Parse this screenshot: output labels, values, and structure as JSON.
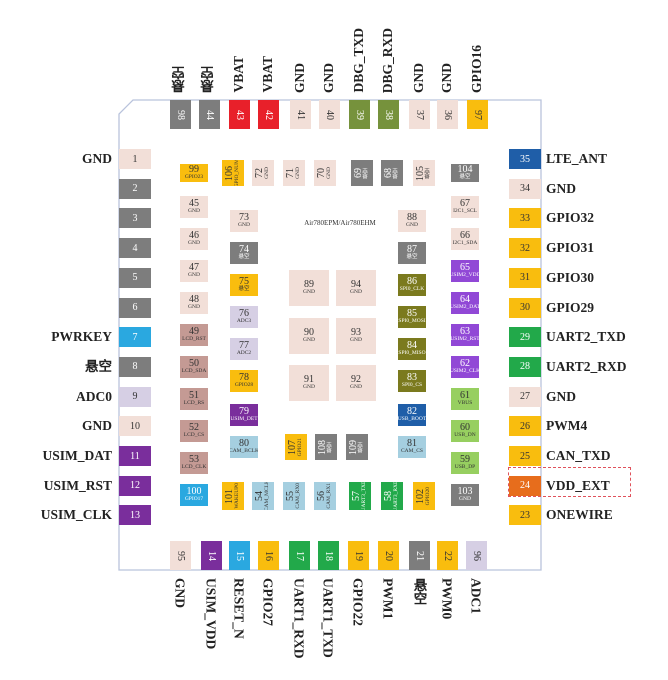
{
  "title": "Air780EPM/Air780EHM",
  "colors": {
    "gnd": "#f2dfd8",
    "gray": "#7d7d7d",
    "blue": "#2aa8e0",
    "lavender": "#d6cfe4",
    "purple": "#7a2e9c",
    "red": "#e8202a",
    "green": "#76923c",
    "yellow": "#f9bd0e",
    "bright_green": "#22a94a",
    "dark_blue": "#1f5ea8",
    "orange": "#e76d1c",
    "rose": "#c49a94",
    "light_blue": "#a5cfe0",
    "violet": "#9148d6",
    "olive": "#7b7a1e",
    "light_green": "#97cf60"
  },
  "pins": {
    "top": [
      {
        "num": "98",
        "label": "悬空",
        "color": "gray"
      },
      {
        "num": "44",
        "label": "悬空",
        "color": "gray"
      },
      {
        "num": "43",
        "label": "VBAT",
        "color": "red"
      },
      {
        "num": "42",
        "label": "VBAT",
        "color": "red"
      },
      {
        "num": "41",
        "label": "GND",
        "color": "gnd"
      },
      {
        "num": "40",
        "label": "GND",
        "color": "gnd"
      },
      {
        "num": "39",
        "label": "DBG_TXD",
        "color": "green"
      },
      {
        "num": "38",
        "label": "DBG_RXD",
        "color": "green"
      },
      {
        "num": "37",
        "label": "GND",
        "color": "gnd"
      },
      {
        "num": "36",
        "label": "GND",
        "color": "gnd"
      },
      {
        "num": "97",
        "label": "GPIO16",
        "color": "yellow"
      }
    ],
    "left": [
      {
        "num": "1",
        "label": "GND",
        "color": "gnd"
      },
      {
        "num": "2",
        "label": "",
        "color": "gray"
      },
      {
        "num": "3",
        "label": "",
        "color": "gray"
      },
      {
        "num": "4",
        "label": "",
        "color": "gray"
      },
      {
        "num": "5",
        "label": "",
        "color": "gray"
      },
      {
        "num": "6",
        "label": "",
        "color": "gray"
      },
      {
        "num": "7",
        "label": "PWRKEY",
        "color": "blue"
      },
      {
        "num": "8",
        "label": "悬空",
        "color": "gray"
      },
      {
        "num": "9",
        "label": "ADC0",
        "color": "lavender"
      },
      {
        "num": "10",
        "label": "GND",
        "color": "gnd"
      },
      {
        "num": "11",
        "label": "USIM_DAT",
        "color": "purple"
      },
      {
        "num": "12",
        "label": "USIM_RST",
        "color": "purple"
      },
      {
        "num": "13",
        "label": "USIM_CLK",
        "color": "purple"
      }
    ],
    "right": [
      {
        "num": "35",
        "label": "LTE_ANT",
        "color": "dark_blue"
      },
      {
        "num": "34",
        "label": "GND",
        "color": "gnd"
      },
      {
        "num": "33",
        "label": "GPIO32",
        "color": "yellow"
      },
      {
        "num": "32",
        "label": "GPIO31",
        "color": "yellow"
      },
      {
        "num": "31",
        "label": "GPIO30",
        "color": "yellow"
      },
      {
        "num": "30",
        "label": "GPIO29",
        "color": "yellow"
      },
      {
        "num": "29",
        "label": "UART2_TXD",
        "color": "bright_green"
      },
      {
        "num": "28",
        "label": "UART2_RXD",
        "color": "bright_green"
      },
      {
        "num": "27",
        "label": "GND",
        "color": "gnd"
      },
      {
        "num": "26",
        "label": "PWM4",
        "color": "yellow"
      },
      {
        "num": "25",
        "label": "CAN_TXD",
        "color": "yellow"
      },
      {
        "num": "24",
        "label": "VDD_EXT",
        "color": "orange"
      },
      {
        "num": "23",
        "label": "ONEWIRE",
        "color": "yellow"
      }
    ],
    "bottom": [
      {
        "num": "95",
        "label": "GND",
        "color": "gnd"
      },
      {
        "num": "14",
        "label": "USIM_VDD",
        "color": "purple"
      },
      {
        "num": "15",
        "label": "RESET_N",
        "color": "blue"
      },
      {
        "num": "16",
        "label": "GPIO27",
        "color": "yellow"
      },
      {
        "num": "17",
        "label": "UART1_RXD",
        "color": "bright_green"
      },
      {
        "num": "18",
        "label": "UART1_TXD",
        "color": "bright_green"
      },
      {
        "num": "19",
        "label": "GPIO22",
        "color": "yellow"
      },
      {
        "num": "20",
        "label": "PWM1",
        "color": "yellow"
      },
      {
        "num": "21",
        "label": "悬空",
        "color": "gray"
      },
      {
        "num": "22",
        "label": "PWM0",
        "color": "yellow"
      },
      {
        "num": "96",
        "label": "ADC1",
        "color": "lavender"
      }
    ]
  },
  "inner_pads": [
    {
      "num": "99",
      "sub": "GPIO23",
      "color": "yellow"
    },
    {
      "num": "106",
      "sub": "GPIO_NUM",
      "color": "yellow"
    },
    {
      "num": "72",
      "sub": "GND",
      "color": "gnd"
    },
    {
      "num": "71",
      "sub": "GND",
      "color": "gnd"
    },
    {
      "num": "70",
      "sub": "GND",
      "color": "gnd"
    },
    {
      "num": "69",
      "sub": "悬空",
      "color": "gray"
    },
    {
      "num": "68",
      "sub": "悬空",
      "color": "gray"
    },
    {
      "num": "105",
      "sub": "悬空",
      "color": "gnd"
    },
    {
      "num": "104",
      "sub": "悬空",
      "color": "gray"
    },
    {
      "num": "45",
      "sub": "GND",
      "color": "gnd"
    },
    {
      "num": "67",
      "sub": "I2C1_SCL",
      "color": "gnd"
    },
    {
      "num": "73",
      "sub": "GND",
      "color": "gnd"
    },
    {
      "num": "88",
      "sub": "GND",
      "color": "gnd"
    },
    {
      "num": "46",
      "sub": "GND",
      "color": "gnd"
    },
    {
      "num": "66",
      "sub": "I2C1_SDA",
      "color": "gnd"
    },
    {
      "num": "74",
      "sub": "悬空",
      "color": "gray"
    },
    {
      "num": "87",
      "sub": "悬空",
      "color": "gray"
    },
    {
      "num": "47",
      "sub": "GND",
      "color": "gnd"
    },
    {
      "num": "65",
      "sub": "USIM2_VDD",
      "color": "violet"
    },
    {
      "num": "89",
      "sub": "GND",
      "color": "gnd"
    },
    {
      "num": "94",
      "sub": "GND",
      "color": "gnd"
    },
    {
      "num": "75",
      "sub": "悬空",
      "color": "yellow"
    },
    {
      "num": "86",
      "sub": "SPI0_CLK",
      "color": "olive"
    },
    {
      "num": "48",
      "sub": "GND",
      "color": "gnd"
    },
    {
      "num": "64",
      "sub": "USIM2_DAT",
      "color": "violet"
    },
    {
      "num": "76",
      "sub": "ADC3",
      "color": "lavender"
    },
    {
      "num": "85",
      "sub": "SPI0_MOSI",
      "color": "olive"
    },
    {
      "num": "90",
      "sub": "GND",
      "color": "gnd"
    },
    {
      "num": "93",
      "sub": "GND",
      "color": "gnd"
    },
    {
      "num": "49",
      "sub": "LCD_RST",
      "color": "rose"
    },
    {
      "num": "63",
      "sub": "USIM2_RST",
      "color": "violet"
    },
    {
      "num": "77",
      "sub": "ADC2",
      "color": "lavender"
    },
    {
      "num": "84",
      "sub": "SPI0_MISO",
      "color": "olive"
    },
    {
      "num": "50",
      "sub": "LCD_SDA",
      "color": "rose"
    },
    {
      "num": "62",
      "sub": "USIM2_CLK",
      "color": "violet"
    },
    {
      "num": "91",
      "sub": "GND",
      "color": "gnd"
    },
    {
      "num": "92",
      "sub": "GND",
      "color": "gnd"
    },
    {
      "num": "78",
      "sub": "GPIO28",
      "color": "yellow"
    },
    {
      "num": "83",
      "sub": "SPI0_CS",
      "color": "olive"
    },
    {
      "num": "51",
      "sub": "LCD_RS",
      "color": "rose"
    },
    {
      "num": "61",
      "sub": "VBUS",
      "color": "light_green"
    },
    {
      "num": "79",
      "sub": "USIM_DET",
      "color": "purple"
    },
    {
      "num": "82",
      "sub": "USB_BOOT",
      "color": "dark_blue"
    },
    {
      "num": "52",
      "sub": "LCD_CS",
      "color": "rose"
    },
    {
      "num": "60",
      "sub": "USB_DN",
      "color": "light_green"
    },
    {
      "num": "80",
      "sub": "CAM_BCLK",
      "color": "light_blue"
    },
    {
      "num": "107",
      "sub": "GPIO21",
      "color": "yellow"
    },
    {
      "num": "108",
      "sub": "悬空",
      "color": "gray"
    },
    {
      "num": "109",
      "sub": "悬空",
      "color": "gray"
    },
    {
      "num": "81",
      "sub": "CAM_CS",
      "color": "light_blue"
    },
    {
      "num": "53",
      "sub": "LCD_CLK",
      "color": "rose"
    },
    {
      "num": "59",
      "sub": "USB_DP",
      "color": "light_green"
    },
    {
      "num": "100",
      "sub": "GPIO17",
      "color": "blue"
    },
    {
      "num": "101",
      "sub": "WAKEUP0",
      "color": "yellow"
    },
    {
      "num": "54",
      "sub": "CAM_MCLK",
      "color": "light_blue"
    },
    {
      "num": "55",
      "sub": "CAM_RX0",
      "color": "light_blue"
    },
    {
      "num": "56",
      "sub": "CAM_RX1",
      "color": "light_blue"
    },
    {
      "num": "57",
      "sub": "UART3_TXD",
      "color": "bright_green"
    },
    {
      "num": "58",
      "sub": "UART3_RXD",
      "color": "bright_green"
    },
    {
      "num": "102",
      "sub": "GPIO20",
      "color": "yellow"
    },
    {
      "num": "103",
      "sub": "GND",
      "color": "gray"
    }
  ]
}
